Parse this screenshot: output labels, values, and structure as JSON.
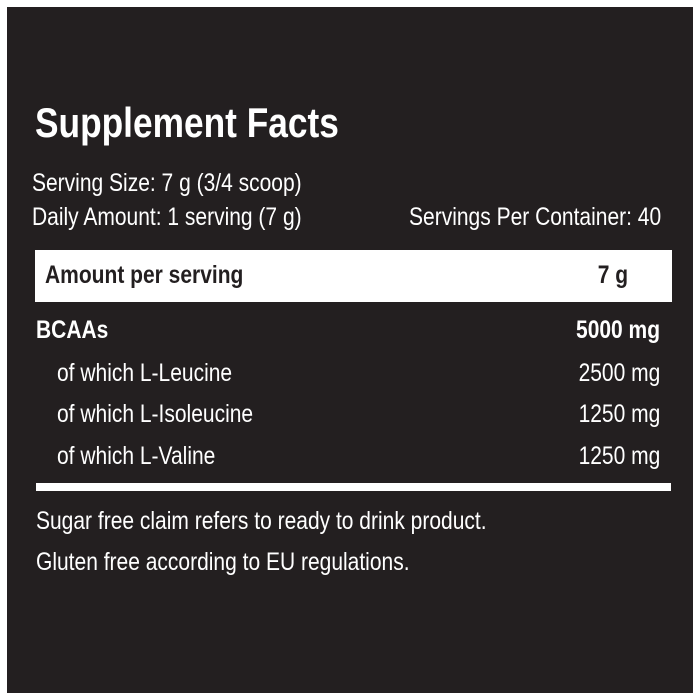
{
  "label": {
    "title": "Supplement Facts",
    "serving_size": "Serving Size: 7 g (3/4 scoop)",
    "daily_amount": "Daily Amount: 1 serving (7 g)",
    "servings_per_container": "Servings Per Container: 40",
    "header": {
      "label": "Amount per serving",
      "value": "7 g"
    },
    "rows": [
      {
        "name": "BCAAs",
        "amount": "5000 mg"
      },
      {
        "name": "of which L-Leucine",
        "amount": "2500 mg"
      },
      {
        "name": "of which L-Isoleucine",
        "amount": "1250 mg"
      },
      {
        "name": "of which L-Valine",
        "amount": "1250 mg"
      }
    ],
    "footnotes": [
      "Sugar free claim refers to ready to drink product.",
      "Gluten free according to EU regulations."
    ]
  },
  "colors": {
    "background": "#231f20",
    "text": "#ffffff"
  }
}
